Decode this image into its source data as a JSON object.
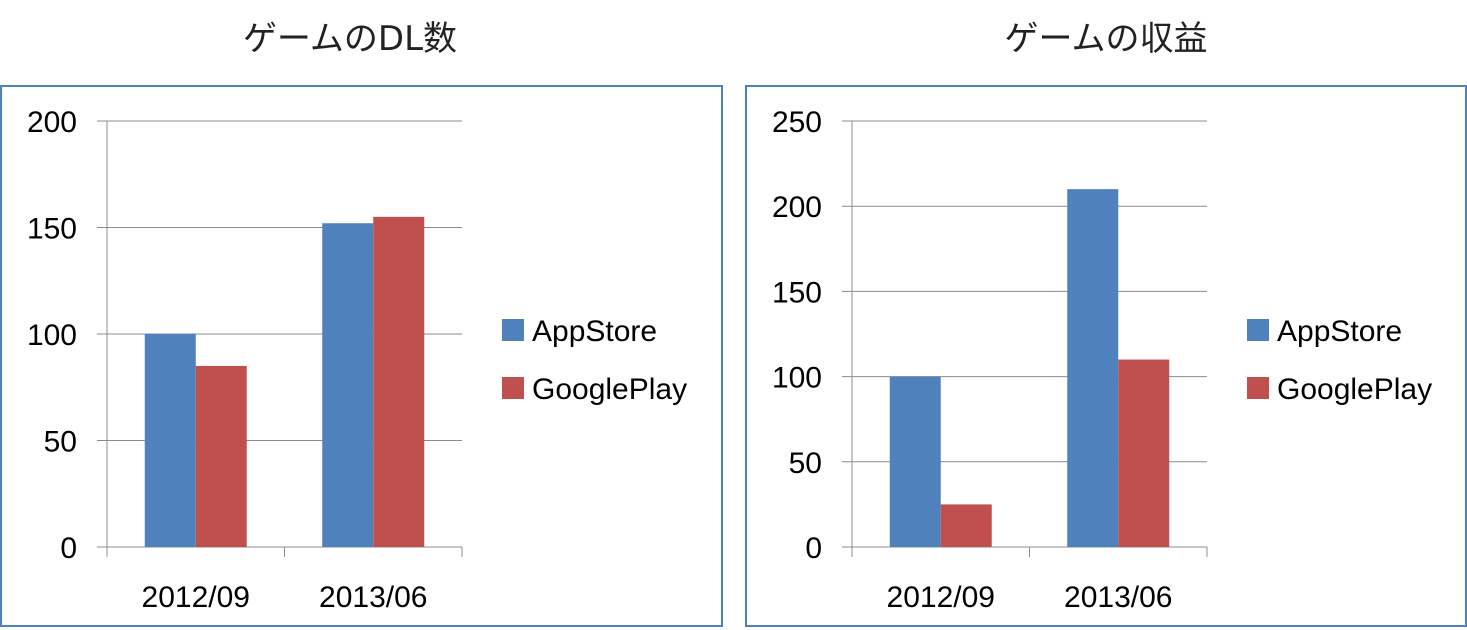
{
  "charts": [
    {
      "title": "ゲームのDL数"
    },
    {
      "title": "ゲームの収益"
    }
  ],
  "chart_data": [
    {
      "type": "bar",
      "title": "ゲームのDL数",
      "categories": [
        "2012/09",
        "2013/06"
      ],
      "series": [
        {
          "name": "AppStore",
          "values": [
            100,
            152
          ],
          "color": "#4f81bd"
        },
        {
          "name": "GooglePlay",
          "values": [
            85,
            155
          ],
          "color": "#c0504d"
        }
      ],
      "ylim": [
        0,
        200
      ],
      "yticks": [
        0,
        50,
        100,
        150,
        200
      ],
      "grid": true,
      "legend": "right"
    },
    {
      "type": "bar",
      "title": "ゲームの収益",
      "categories": [
        "2012/09",
        "2013/06"
      ],
      "series": [
        {
          "name": "AppStore",
          "values": [
            100,
            210
          ],
          "color": "#4f81bd"
        },
        {
          "name": "GooglePlay",
          "values": [
            25,
            110
          ],
          "color": "#c0504d"
        }
      ],
      "ylim": [
        0,
        250
      ],
      "yticks": [
        0,
        50,
        100,
        150,
        200,
        250
      ],
      "grid": true,
      "legend": "right"
    }
  ]
}
